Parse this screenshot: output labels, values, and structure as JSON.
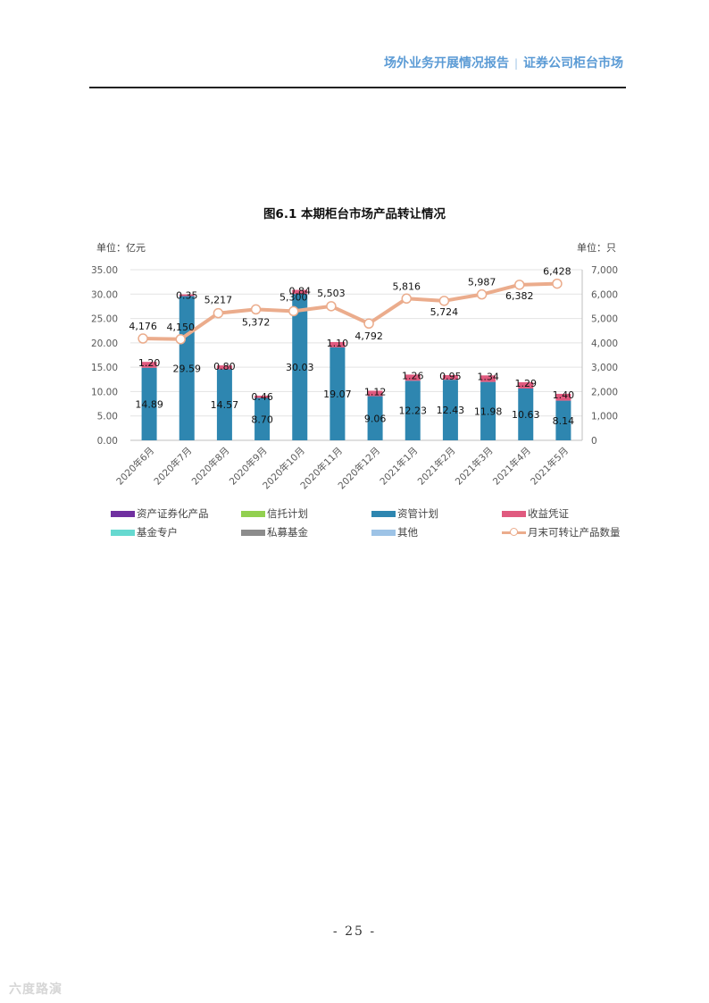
{
  "header": {
    "left": "场外业务开展情况报告",
    "separator": "|",
    "right": "证券公司柜台市场"
  },
  "figure": {
    "title": "图6.1 本期柜台市场产品转让情况"
  },
  "chart_data": {
    "type": "bar",
    "stacked": true,
    "left_unit": "单位：亿元",
    "right_unit": "单位：只",
    "categories": [
      "2020年6月",
      "2020年7月",
      "2020年8月",
      "2020年9月",
      "2020年10月",
      "2020年11月",
      "2020年12月",
      "2021年1月",
      "2021年2月",
      "2021年3月",
      "2021年4月",
      "2021年5月"
    ],
    "y_left": {
      "min": 0,
      "max": 35,
      "ticks": [
        "0.00",
        "5.00",
        "10.00",
        "15.00",
        "20.00",
        "25.00",
        "30.00",
        "35.00"
      ]
    },
    "y_right": {
      "min": 0,
      "max": 7000,
      "ticks": [
        "0",
        "1,000",
        "2,000",
        "3,000",
        "4,000",
        "5,000",
        "6,000",
        "7,000"
      ]
    },
    "series": [
      {
        "name": "资产证券化产品",
        "color": "#7030a0",
        "values": [
          0,
          0,
          0,
          0,
          0,
          0,
          0,
          0,
          0,
          0,
          0,
          0
        ]
      },
      {
        "name": "信托计划",
        "color": "#92d050",
        "values": [
          0,
          0,
          0,
          0,
          0,
          0,
          0,
          0,
          0,
          0,
          0,
          0
        ]
      },
      {
        "name": "资管计划",
        "color": "#2e86b0",
        "values": [
          14.89,
          29.59,
          14.57,
          8.7,
          30.03,
          19.07,
          9.06,
          12.23,
          12.43,
          11.98,
          10.63,
          8.14
        ],
        "labels": [
          "14.89",
          "29.59",
          "14.57",
          "8.70",
          "30.03",
          "19.07",
          "9.06",
          "12.23",
          "12.43",
          "11.98",
          "10.63",
          "8.14"
        ]
      },
      {
        "name": "收益凭证",
        "color": "#e05a7f",
        "values": [
          1.2,
          0.35,
          0.8,
          0.46,
          0.84,
          1.1,
          1.12,
          1.26,
          0.95,
          1.34,
          1.29,
          1.4
        ],
        "labels": [
          "1.20",
          "0.35",
          "0.80",
          "0.46",
          "0.84",
          "1.10",
          "1.12",
          "1.26",
          "0.95",
          "1.34",
          "1.29",
          "1.40"
        ]
      },
      {
        "name": "基金专户",
        "color": "#66d9d0",
        "values": [
          0,
          0,
          0,
          0,
          0,
          0,
          0,
          0,
          0,
          0,
          0,
          0
        ]
      },
      {
        "name": "私募基金",
        "color": "#8c8c8c",
        "values": [
          0,
          0,
          0,
          0,
          0,
          0,
          0,
          0,
          0,
          0,
          0,
          0
        ]
      },
      {
        "name": "其他",
        "color": "#9dc3e6",
        "values": [
          0,
          0,
          0,
          0,
          0,
          0,
          0,
          0,
          0,
          0,
          0,
          0
        ]
      }
    ],
    "line": {
      "name": "月末可转让产品数量",
      "color": "#ebac8c",
      "axis": "right",
      "values": [
        4176,
        4150,
        5217,
        5372,
        5300,
        5503,
        4792,
        5816,
        5724,
        5987,
        6382,
        6428
      ],
      "labels": [
        "4,176",
        "4,150",
        "5,217",
        "5,372",
        "5,300",
        "5,503",
        "4,792",
        "5,816",
        "5,724",
        "5,987",
        "6,382",
        "6,428"
      ]
    },
    "grid": true,
    "legend_position": "bottom"
  },
  "page": {
    "number": "- 25 -"
  },
  "watermark": "六度路演"
}
